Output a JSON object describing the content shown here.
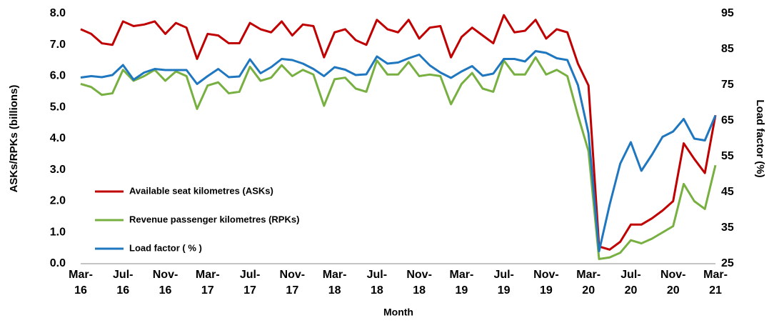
{
  "chart_data": {
    "type": "line",
    "x_label": "Month",
    "y_label": "ASKs/RPKs (billions)",
    "y2_label": "Load factor (%)",
    "categories": [
      "Mar-16",
      null,
      null,
      null,
      "Jul-16",
      null,
      null,
      null,
      "Nov-16",
      null,
      null,
      null,
      "Mar-17",
      null,
      null,
      null,
      "Jul-17",
      null,
      null,
      null,
      "Nov-17",
      null,
      null,
      null,
      "Mar-18",
      null,
      null,
      null,
      "Jul-18",
      null,
      null,
      null,
      "Nov-18",
      null,
      null,
      null,
      "Mar-19",
      null,
      null,
      null,
      "Jul-19",
      null,
      null,
      null,
      "Nov-19",
      null,
      null,
      null,
      "Mar-20",
      null,
      null,
      null,
      "Jul-20",
      null,
      null,
      null,
      "Nov-20",
      null,
      null,
      null,
      "Mar-21"
    ],
    "ylim": [
      0,
      8
    ],
    "yticks": [
      {
        "value": 0,
        "label": "0.0"
      },
      {
        "value": 1,
        "label": "1.0"
      },
      {
        "value": 2,
        "label": "2.0"
      },
      {
        "value": 3,
        "label": "3.0"
      },
      {
        "value": 4,
        "label": "4.0"
      },
      {
        "value": 5,
        "label": "5.0"
      },
      {
        "value": 6,
        "label": "6.0"
      },
      {
        "value": 7,
        "label": "7.0"
      },
      {
        "value": 8,
        "label": "8.0"
      }
    ],
    "y2lim": [
      25,
      95
    ],
    "y2ticks": [
      25,
      35,
      45,
      55,
      65,
      75,
      85,
      95
    ],
    "grid": false,
    "series": [
      {
        "name": "Available seat kilometres (ASKs)",
        "color": "#c00000",
        "values": [
          7.5,
          7.35,
          7.05,
          7.0,
          7.75,
          7.6,
          7.65,
          7.75,
          7.35,
          7.7,
          7.55,
          6.55,
          7.35,
          7.3,
          7.05,
          7.05,
          7.7,
          7.5,
          7.4,
          7.75,
          7.3,
          7.65,
          7.6,
          6.6,
          7.4,
          7.5,
          7.15,
          7.0,
          7.8,
          7.5,
          7.4,
          7.8,
          7.2,
          7.55,
          7.6,
          6.6,
          7.25,
          7.55,
          7.3,
          7.05,
          7.95,
          7.4,
          7.45,
          7.8,
          7.2,
          7.5,
          7.4,
          6.4,
          5.7,
          0.55,
          0.45,
          0.7,
          1.25,
          1.25,
          1.45,
          1.7,
          2.0,
          3.85,
          3.35,
          2.9,
          4.75
        ]
      },
      {
        "name": "Revenue passenger kilometres (RPKs)",
        "color": "#77b041",
        "values": [
          5.75,
          5.65,
          5.4,
          5.45,
          6.2,
          5.85,
          6.0,
          6.2,
          5.85,
          6.15,
          6.0,
          4.95,
          5.7,
          5.8,
          5.45,
          5.5,
          6.3,
          5.85,
          5.95,
          6.35,
          6.0,
          6.2,
          6.05,
          5.05,
          5.9,
          5.95,
          5.6,
          5.5,
          6.5,
          6.05,
          6.05,
          6.45,
          6.0,
          6.05,
          6.0,
          5.1,
          5.75,
          6.1,
          5.6,
          5.5,
          6.5,
          6.05,
          6.05,
          6.6,
          6.05,
          6.2,
          6.0,
          4.75,
          3.6,
          0.15,
          0.2,
          0.35,
          0.75,
          0.65,
          0.8,
          1.0,
          1.2,
          2.55,
          2.0,
          1.75,
          3.15
        ]
      },
      {
        "name": "Load factor ( % )",
        "color": "#1f77c0",
        "axis": "y2",
        "values": [
          77.1,
          77.5,
          77.2,
          77.8,
          80.6,
          76.5,
          78.5,
          79.5,
          79.2,
          79.2,
          79.2,
          75.3,
          77.5,
          79.5,
          77.2,
          77.4,
          82.2,
          78.3,
          80.0,
          82.3,
          82.0,
          81.0,
          79.5,
          77.5,
          80.0,
          79.3,
          77.8,
          78.0,
          83.0,
          81.0,
          81.3,
          82.5,
          83.5,
          80.5,
          78.5,
          77.0,
          78.8,
          80.3,
          77.6,
          78.2,
          82.3,
          82.3,
          81.6,
          84.5,
          84.0,
          82.5,
          82.0,
          75.0,
          61.5,
          28.5,
          41.5,
          53.0,
          59.0,
          51.0,
          55.5,
          60.5,
          62.0,
          65.5,
          60.0,
          59.5,
          66.5
        ]
      }
    ]
  }
}
